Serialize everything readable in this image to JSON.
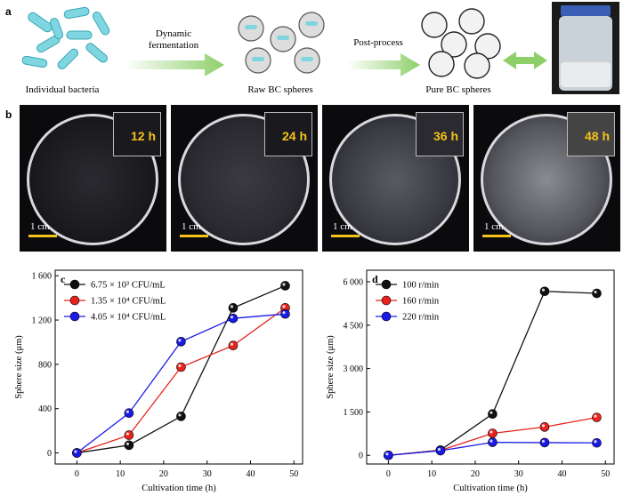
{
  "panels": {
    "a": {
      "letter": "a",
      "steps": [
        "Individual bacteria",
        "Raw BC spheres",
        "Pure BC spheres"
      ],
      "arrow1": [
        "Dynamic",
        "fermentation"
      ],
      "arrow2": "Post-process"
    },
    "b": {
      "letter": "b",
      "times": [
        "12 h",
        "24 h",
        "36 h",
        "48 h"
      ],
      "scale_label": "1 cm"
    }
  },
  "colors": {
    "black_series": "#111111",
    "red_series": "#e8231e",
    "blue_series": "#1a1ae6",
    "arrow_green": "#8ecf6a",
    "bacteria": "#7fd6e0",
    "scale_bar": "#f4c21a"
  },
  "chart_data": [
    {
      "panel": "c",
      "type": "line",
      "xlabel": "Cultivation time (h)",
      "ylabel": "Sphere size (μm)",
      "xlim": [
        -5,
        52
      ],
      "ylim": [
        -100,
        1650
      ],
      "xticks": [
        0,
        10,
        20,
        30,
        40,
        50
      ],
      "yticks": [
        0,
        400,
        800,
        1200,
        1600
      ],
      "ytick_labels": [
        "0",
        "400",
        "800",
        "1 200",
        "1 600"
      ],
      "legend_position": "top-left",
      "series": [
        {
          "name": "6.75 × 10³ CFU/mL",
          "color": "#111111",
          "x": [
            0,
            12,
            24,
            36,
            48
          ],
          "y": [
            0,
            70,
            330,
            1310,
            1510
          ]
        },
        {
          "name": "1.35 × 10⁴ CFU/mL",
          "color": "#e8231e",
          "x": [
            0,
            12,
            24,
            36,
            48
          ],
          "y": [
            0,
            160,
            775,
            970,
            1310
          ]
        },
        {
          "name": "4.05 × 10⁴ CFU/mL",
          "color": "#1a1ae6",
          "x": [
            0,
            12,
            24,
            36,
            48
          ],
          "y": [
            0,
            360,
            1005,
            1215,
            1255
          ]
        }
      ]
    },
    {
      "panel": "d",
      "type": "line",
      "xlabel": "Cultivation time (h)",
      "ylabel": "Sphere size (μm)",
      "xlim": [
        -5,
        52
      ],
      "ylim": [
        -300,
        6400
      ],
      "xticks": [
        0,
        10,
        20,
        30,
        40,
        50
      ],
      "yticks": [
        0,
        1500,
        3000,
        4500,
        6000
      ],
      "ytick_labels": [
        "0",
        "1 500",
        "3 000",
        "4 500",
        "6 000"
      ],
      "legend_position": "top-left",
      "series": [
        {
          "name": "100 r/min",
          "color": "#111111",
          "x": [
            0,
            12,
            24,
            36,
            48
          ],
          "y": [
            0,
            180,
            1430,
            5670,
            5600
          ]
        },
        {
          "name": "160 r/min",
          "color": "#e8231e",
          "x": [
            0,
            12,
            24,
            36,
            48
          ],
          "y": [
            0,
            170,
            760,
            980,
            1310
          ]
        },
        {
          "name": "220 r/min",
          "color": "#1a1ae6",
          "x": [
            0,
            12,
            24,
            36,
            48
          ],
          "y": [
            0,
            160,
            450,
            440,
            430
          ]
        }
      ]
    }
  ]
}
